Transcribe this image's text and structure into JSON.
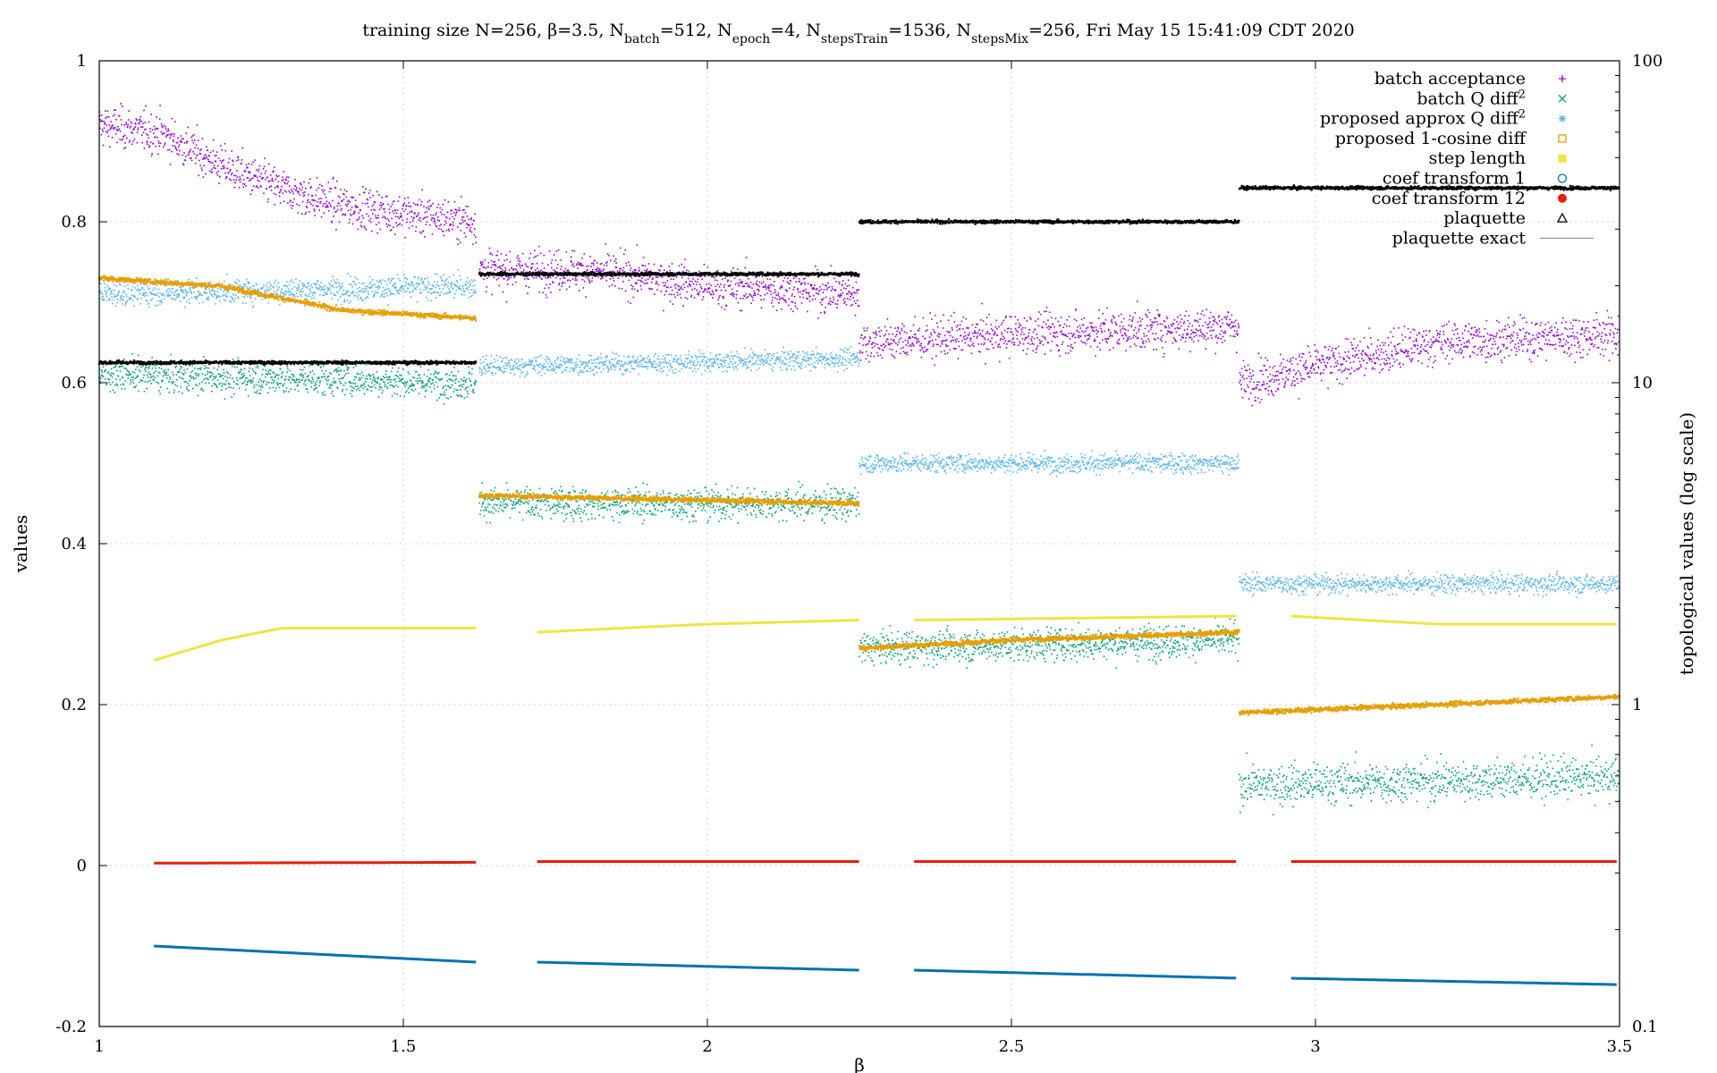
{
  "chart_data": {
    "type": "scatter",
    "title": "training size N=256, β=3.5, N_batch=512, N_epoch=4, N_stepsTrain=1536, N_stepsMix=256, Fri May 15 15:41:09 CDT 2020",
    "title_parts": [
      {
        "t": "training size N=256, β=3.5, N"
      },
      {
        "t": "batch",
        "sub": true
      },
      {
        "t": "=512, N"
      },
      {
        "t": "epoch",
        "sub": true
      },
      {
        "t": "=4, N"
      },
      {
        "t": "stepsTrain",
        "sub": true
      },
      {
        "t": "=1536, N"
      },
      {
        "t": "stepsMix",
        "sub": true
      },
      {
        "t": "=256, Fri May 15 15:41:09 CDT 2020"
      }
    ],
    "xlabel": "β",
    "ylabel": "values",
    "y2label": "topological values (log scale)",
    "xlim": [
      1,
      3.5
    ],
    "ylim": [
      -0.2,
      1
    ],
    "y2lim": [
      0.1,
      100
    ],
    "y2_scale": "log",
    "grid": true,
    "legend_position": "top-right",
    "x_ticks": [
      "1",
      "1.5",
      "2",
      "2.5",
      "3",
      "3.5"
    ],
    "y_ticks": [
      "-0.2",
      "0",
      "0.2",
      "0.4",
      "0.6",
      "0.8",
      "1"
    ],
    "y2_ticks": [
      "0.1",
      "1",
      "10",
      "100"
    ],
    "segments": [
      {
        "x0": 1.0,
        "x1": 1.62
      },
      {
        "x0": 1.625,
        "x1": 2.25
      },
      {
        "x0": 2.25,
        "x1": 2.875
      },
      {
        "x0": 2.875,
        "x1": 3.5
      }
    ],
    "series": [
      {
        "name": "batch acceptance",
        "marker": "plus",
        "color": "#9400d3",
        "axis": "y",
        "segments": [
          {
            "x": [
              1.0,
              1.1,
              1.2,
              1.3,
              1.4,
              1.5,
              1.62
            ],
            "y": [
              0.92,
              0.91,
              0.87,
              0.84,
              0.82,
              0.81,
              0.8
            ],
            "noise": 0.025
          },
          {
            "x": [
              1.625,
              1.8,
              2.0,
              2.25
            ],
            "y": [
              0.74,
              0.74,
              0.72,
              0.71
            ],
            "noise": 0.025
          },
          {
            "x": [
              2.25,
              2.5,
              2.875
            ],
            "y": [
              0.65,
              0.66,
              0.67
            ],
            "noise": 0.025
          },
          {
            "x": [
              2.875,
              3.0,
              3.2,
              3.5
            ],
            "y": [
              0.6,
              0.62,
              0.65,
              0.66
            ],
            "noise": 0.025
          }
        ]
      },
      {
        "name": "batch Q diff",
        "name_sup": "2",
        "marker": "cross",
        "color": "#009e73",
        "axis": "y",
        "segments": [
          {
            "x": [
              1.0,
              1.62
            ],
            "y": [
              0.61,
              0.6
            ],
            "noise": 0.02
          },
          {
            "x": [
              1.625,
              2.25
            ],
            "y": [
              0.45,
              0.45
            ],
            "noise": 0.02
          },
          {
            "x": [
              2.25,
              2.875
            ],
            "y": [
              0.27,
              0.28
            ],
            "noise": 0.02
          },
          {
            "x": [
              2.875,
              3.5
            ],
            "y": [
              0.1,
              0.11
            ],
            "noise": 0.025
          }
        ]
      },
      {
        "name": "proposed approx Q diff",
        "name_sup": "2",
        "marker": "star",
        "color": "#56b4e9",
        "axis": "y",
        "segments": [
          {
            "x": [
              1.0,
              1.62
            ],
            "y": [
              0.71,
              0.72
            ],
            "noise": 0.015
          },
          {
            "x": [
              1.625,
              2.25
            ],
            "y": [
              0.62,
              0.63
            ],
            "noise": 0.012
          },
          {
            "x": [
              2.25,
              2.875
            ],
            "y": [
              0.5,
              0.5
            ],
            "noise": 0.012
          },
          {
            "x": [
              2.875,
              3.5
            ],
            "y": [
              0.35,
              0.35
            ],
            "noise": 0.012
          }
        ]
      },
      {
        "name": "proposed 1-cosine diff",
        "marker": "open-square",
        "color": "#e69f00",
        "axis": "y",
        "segments": [
          {
            "x": [
              1.0,
              1.2,
              1.4,
              1.62
            ],
            "y": [
              0.73,
              0.72,
              0.69,
              0.68
            ],
            "noise": 0.003
          },
          {
            "x": [
              1.625,
              2.25
            ],
            "y": [
              0.46,
              0.45
            ],
            "noise": 0.003
          },
          {
            "x": [
              2.25,
              2.5,
              2.875
            ],
            "y": [
              0.27,
              0.28,
              0.29
            ],
            "noise": 0.003
          },
          {
            "x": [
              2.875,
              3.2,
              3.5
            ],
            "y": [
              0.19,
              0.2,
              0.21
            ],
            "noise": 0.003
          }
        ]
      },
      {
        "name": "step length",
        "marker": "filled-square",
        "color": "#f0e442",
        "axis": "y",
        "segments": [
          {
            "x": [
              1.09,
              1.2,
              1.3,
              1.62
            ],
            "y": [
              0.255,
              0.28,
              0.295,
              0.295
            ]
          },
          {
            "x": [
              1.72,
              2.0,
              2.25
            ],
            "y": [
              0.29,
              0.3,
              0.305
            ]
          },
          {
            "x": [
              2.34,
              2.875
            ],
            "y": [
              0.305,
              0.31
            ]
          },
          {
            "x": [
              2.96,
              3.2,
              3.5
            ],
            "y": [
              0.31,
              0.3,
              0.3
            ]
          }
        ]
      },
      {
        "name": "coef transform 1",
        "marker": "open-circle",
        "color": "#0072b2",
        "axis": "y",
        "segments": [
          {
            "x": [
              1.09,
              1.62
            ],
            "y": [
              -0.1,
              -0.12
            ]
          },
          {
            "x": [
              1.72,
              2.25
            ],
            "y": [
              -0.12,
              -0.13
            ]
          },
          {
            "x": [
              2.34,
              2.875
            ],
            "y": [
              -0.13,
              -0.14
            ]
          },
          {
            "x": [
              2.96,
              3.5
            ],
            "y": [
              -0.14,
              -0.148
            ]
          }
        ]
      },
      {
        "name": "coef transform 12",
        "marker": "filled-circle",
        "color": "#e51e10",
        "axis": "y",
        "segments": [
          {
            "x": [
              1.09,
              1.62
            ],
            "y": [
              0.003,
              0.004
            ]
          },
          {
            "x": [
              1.72,
              2.25
            ],
            "y": [
              0.005,
              0.005
            ]
          },
          {
            "x": [
              2.34,
              2.875
            ],
            "y": [
              0.005,
              0.005
            ]
          },
          {
            "x": [
              2.96,
              3.5
            ],
            "y": [
              0.005,
              0.005
            ]
          }
        ]
      },
      {
        "name": "plaquette",
        "marker": "open-triangle",
        "color": "#000000",
        "axis": "y",
        "segments": [
          {
            "x": [
              1.0,
              1.62
            ],
            "y": [
              0.625,
              0.625
            ],
            "noise": 0.002
          },
          {
            "x": [
              1.625,
              2.25
            ],
            "y": [
              0.735,
              0.735
            ],
            "noise": 0.002
          },
          {
            "x": [
              2.25,
              2.875
            ],
            "y": [
              0.8,
              0.8
            ],
            "noise": 0.002
          },
          {
            "x": [
              2.875,
              3.5
            ],
            "y": [
              0.842,
              0.842
            ],
            "noise": 0.002
          }
        ]
      },
      {
        "name": "plaquette exact",
        "marker": "line",
        "color": "#808080",
        "axis": "y",
        "segments": []
      }
    ]
  }
}
